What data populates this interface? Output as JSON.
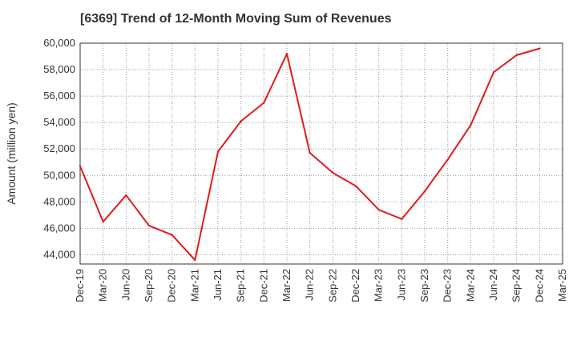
{
  "chart_data": {
    "type": "line",
    "title": "[6369]  Trend of 12-Month Moving Sum of Revenues",
    "xlabel": "",
    "ylabel": "Amount (million yen)",
    "ylim": [
      43300,
      60000
    ],
    "yticks": [
      44000,
      46000,
      48000,
      50000,
      52000,
      54000,
      56000,
      58000,
      60000
    ],
    "x_tick_labels": [
      "Dec-19",
      "Mar-20",
      "Jun-20",
      "Sep-20",
      "Dec-20",
      "Mar-21",
      "Jun-21",
      "Sep-21",
      "Dec-21",
      "Mar-22",
      "Jun-22",
      "Sep-22",
      "Dec-22",
      "Mar-23",
      "Jun-23",
      "Sep-23",
      "Dec-23",
      "Mar-24",
      "Jun-24",
      "Sep-24",
      "Dec-24",
      "Mar-25"
    ],
    "grid": true,
    "series": [
      {
        "color": "#e31a1c",
        "x": [
          "Dec-19",
          "Mar-20",
          "Jun-20",
          "Sep-20",
          "Dec-20",
          "Mar-21",
          "Jun-21",
          "Sep-21",
          "Dec-21",
          "Mar-22",
          "Jun-22",
          "Sep-22",
          "Dec-22",
          "Mar-23",
          "Jun-23",
          "Sep-23",
          "Dec-23",
          "Mar-24",
          "Jun-24",
          "Sep-24",
          "Dec-24"
        ],
        "values": [
          50700,
          46500,
          48500,
          46200,
          45500,
          43600,
          51800,
          54100,
          55500,
          59200,
          51700,
          50200,
          49200,
          47400,
          46700,
          48800,
          51200,
          53800,
          57800,
          59100,
          59600
        ]
      }
    ]
  }
}
